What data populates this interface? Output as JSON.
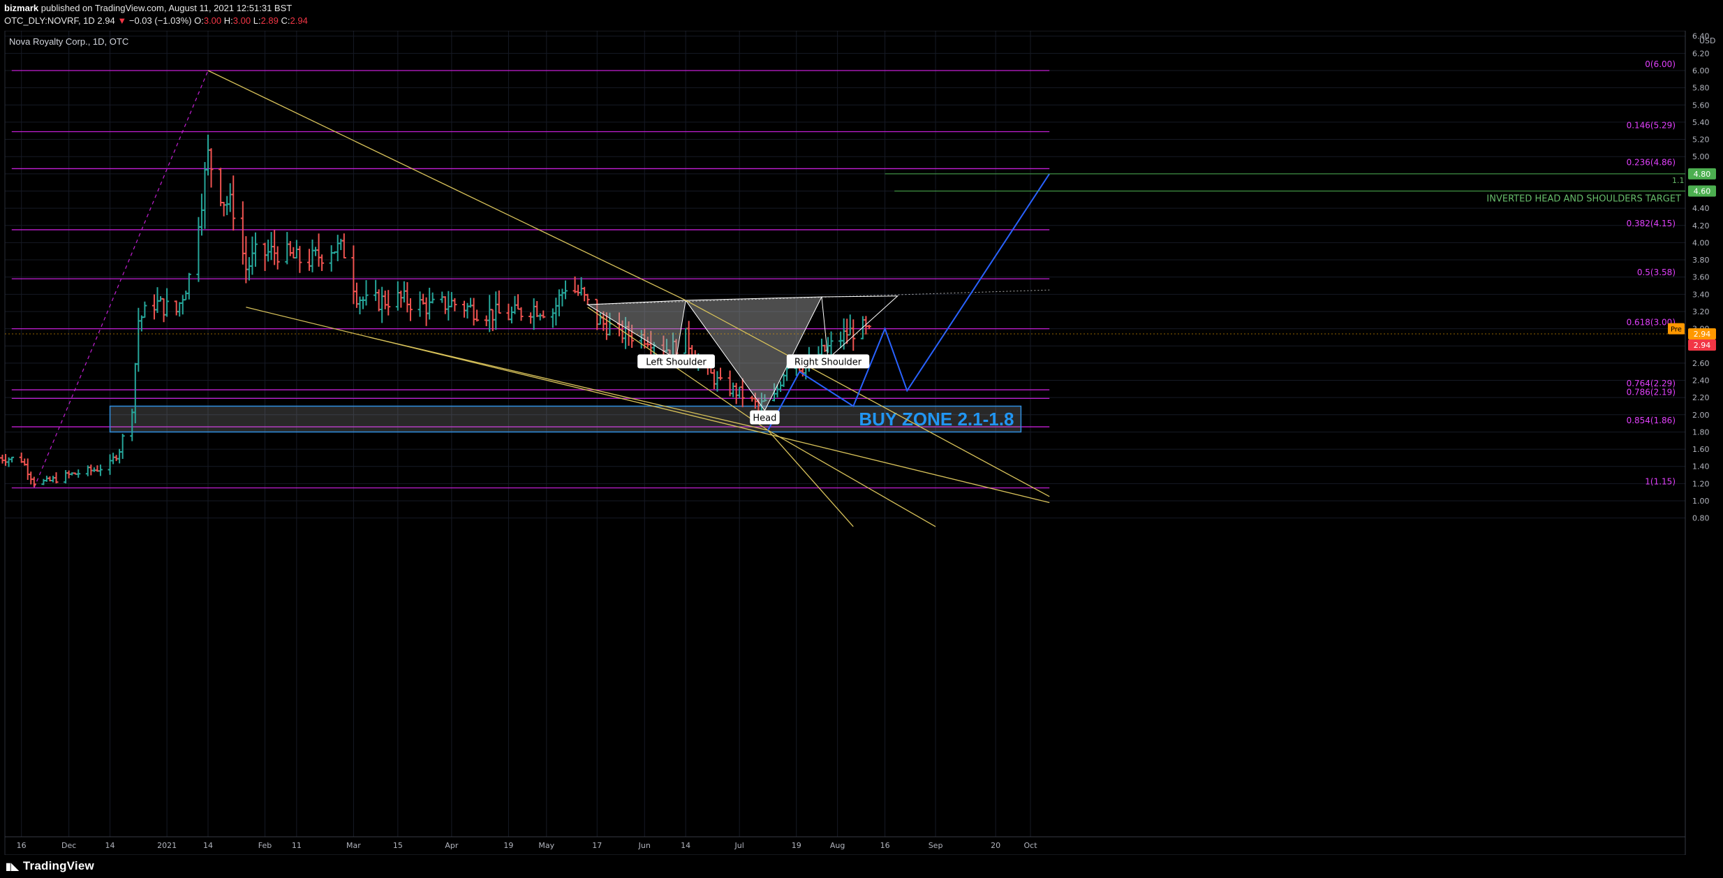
{
  "header": {
    "author": "bizmark",
    "published_text": "published on TradingView.com, August 11, 2021 12:51:31 BST",
    "symbol": "OTC_DLY:NOVRF, 1D",
    "last": "2.94",
    "change": "−0.03 (−1.03%)",
    "o_label": "O:",
    "o": "3.00",
    "h_label": "H:",
    "h": "3.00",
    "l_label": "L:",
    "l": "2.89",
    "c_label": "C:",
    "c": "2.94"
  },
  "footer": {
    "brand": "TradingView"
  },
  "chart_data": {
    "type": "bar",
    "title": "Nova Royalty Corp., 1D, OTC",
    "currency": "USD",
    "ylim": [
      0.7,
      6.55
    ],
    "grid": true,
    "y_ticks": [
      0.8,
      1.0,
      1.2,
      1.4,
      1.6,
      1.8,
      2.0,
      2.2,
      2.4,
      2.6,
      2.8,
      3.0,
      3.2,
      3.4,
      3.6,
      3.8,
      4.0,
      4.2,
      4.4,
      4.6,
      4.8,
      5.0,
      5.2,
      5.4,
      5.6,
      5.8,
      6.0,
      6.2,
      6.4
    ],
    "x_ticks": [
      {
        "label": "16",
        "date": "2020-11-16"
      },
      {
        "label": "Dec",
        "date": "2020-12-01"
      },
      {
        "label": "14",
        "date": "2020-12-14"
      },
      {
        "label": "2021",
        "date": "2021-01-01"
      },
      {
        "label": "14",
        "date": "2021-01-14"
      },
      {
        "label": "Feb",
        "date": "2021-02-01"
      },
      {
        "label": "11",
        "date": "2021-02-11"
      },
      {
        "label": "Mar",
        "date": "2021-03-01"
      },
      {
        "label": "15",
        "date": "2021-03-15"
      },
      {
        "label": "Apr",
        "date": "2021-04-01"
      },
      {
        "label": "19",
        "date": "2021-04-19"
      },
      {
        "label": "May",
        "date": "2021-05-01"
      },
      {
        "label": "17",
        "date": "2021-05-17"
      },
      {
        "label": "Jun",
        "date": "2021-06-01"
      },
      {
        "label": "14",
        "date": "2021-06-14"
      },
      {
        "label": "Jul",
        "date": "2021-07-01"
      },
      {
        "label": "19",
        "date": "2021-07-19"
      },
      {
        "label": "Aug",
        "date": "2021-08-01"
      },
      {
        "label": "16",
        "date": "2021-08-16"
      },
      {
        "label": "Sep",
        "date": "2021-09-01"
      },
      {
        "label": "20",
        "date": "2021-09-20"
      },
      {
        "label": "Oct",
        "date": "2021-10-01"
      }
    ],
    "price_path": [
      [
        "2020-11-09",
        1.5
      ],
      [
        "2020-11-16",
        1.48
      ],
      [
        "2020-11-20",
        1.22
      ],
      [
        "2020-11-24",
        1.22
      ],
      [
        "2020-12-01",
        1.3
      ],
      [
        "2020-12-09",
        1.36
      ],
      [
        "2020-12-14",
        1.42
      ],
      [
        "2020-12-17",
        1.6
      ],
      [
        "2020-12-21",
        2.1
      ],
      [
        "2020-12-23",
        3.1
      ],
      [
        "2020-12-28",
        3.3
      ],
      [
        "2021-01-04",
        3.2
      ],
      [
        "2021-01-08",
        3.6
      ],
      [
        "2021-01-14",
        5.0
      ],
      [
        "2021-01-19",
        4.5
      ],
      [
        "2021-01-22",
        4.4
      ],
      [
        "2021-01-26",
        3.7
      ],
      [
        "2021-01-29",
        3.85
      ],
      [
        "2021-02-05",
        3.9
      ],
      [
        "2021-02-11",
        3.8
      ],
      [
        "2021-02-16",
        3.8
      ],
      [
        "2021-02-22",
        3.95
      ],
      [
        "2021-02-26",
        3.9
      ],
      [
        "2021-03-02",
        3.4
      ],
      [
        "2021-03-05",
        3.3
      ],
      [
        "2021-03-15",
        3.35
      ],
      [
        "2021-03-25",
        3.25
      ],
      [
        "2021-04-01",
        3.3
      ],
      [
        "2021-04-10",
        3.2
      ],
      [
        "2021-04-19",
        3.15
      ],
      [
        "2021-04-27",
        3.25
      ],
      [
        "2021-05-03",
        3.2
      ],
      [
        "2021-05-07",
        3.5
      ],
      [
        "2021-05-12",
        3.4
      ],
      [
        "2021-05-17",
        3.1
      ],
      [
        "2021-05-24",
        2.95
      ],
      [
        "2021-06-02",
        2.9
      ],
      [
        "2021-06-09",
        2.75
      ],
      [
        "2021-06-14",
        2.9
      ],
      [
        "2021-06-18",
        2.6
      ],
      [
        "2021-06-25",
        2.35
      ],
      [
        "2021-07-01",
        2.25
      ],
      [
        "2021-07-07",
        2.1
      ],
      [
        "2021-07-12",
        2.2
      ],
      [
        "2021-07-16",
        2.6
      ],
      [
        "2021-07-22",
        2.55
      ],
      [
        "2021-07-26",
        2.7
      ],
      [
        "2021-07-30",
        2.8
      ],
      [
        "2021-08-04",
        2.95
      ],
      [
        "2021-08-09",
        3.0
      ],
      [
        "2021-08-11",
        2.94
      ]
    ],
    "last_price": 2.94,
    "fibonacci": [
      {
        "label": "0(6.00)",
        "value": 6.0
      },
      {
        "label": "0.146(5.29)",
        "value": 5.29
      },
      {
        "label": "0.236(4.86)",
        "value": 4.86
      },
      {
        "label": "0.382(4.15)",
        "value": 4.15
      },
      {
        "label": "0.5(3.58)",
        "value": 3.58
      },
      {
        "label": "0.618(3.00)",
        "value": 3.0
      },
      {
        "label": "0.764(2.29)",
        "value": 2.29
      },
      {
        "label": "0.786(2.19)",
        "value": 2.19
      },
      {
        "label": "0.854(1.86)",
        "value": 1.86
      },
      {
        "label": "1(1.15)",
        "value": 1.15
      }
    ],
    "fib_range_dates": [
      "2020-11-20",
      "2021-10-07"
    ],
    "buy_zone": {
      "label": "BUY ZONE 2.1-1.8",
      "low": 1.8,
      "high": 2.1,
      "start": "2020-12-14",
      "end": "2021-09-28"
    },
    "target_lines": [
      {
        "label": "",
        "value": 4.8,
        "start": "2021-08-16"
      },
      {
        "label": "INVERTED HEAD AND SHOULDERS TARGET",
        "value": 4.6,
        "start": "2021-08-19"
      }
    ],
    "axis_badges": [
      {
        "label": "4.80",
        "value": 4.8,
        "color": "#4caf50"
      },
      {
        "label": "4.60",
        "value": 4.6,
        "color": "#4caf50"
      },
      {
        "label": "2.94",
        "value": 2.94,
        "color": "#ff9800"
      },
      {
        "label": "2.94",
        "value": 2.94,
        "color": "#f23645"
      }
    ],
    "pre_badge": {
      "label": "Pre",
      "value": 3.0
    },
    "target_marker": "1.1",
    "pattern_labels": [
      {
        "label": "Left Shoulder",
        "date": "2021-06-11",
        "value": 2.62
      },
      {
        "label": "Head",
        "date": "2021-07-09",
        "value": 1.97
      },
      {
        "label": "Right Shoulder",
        "date": "2021-07-29",
        "value": 2.62
      }
    ]
  }
}
